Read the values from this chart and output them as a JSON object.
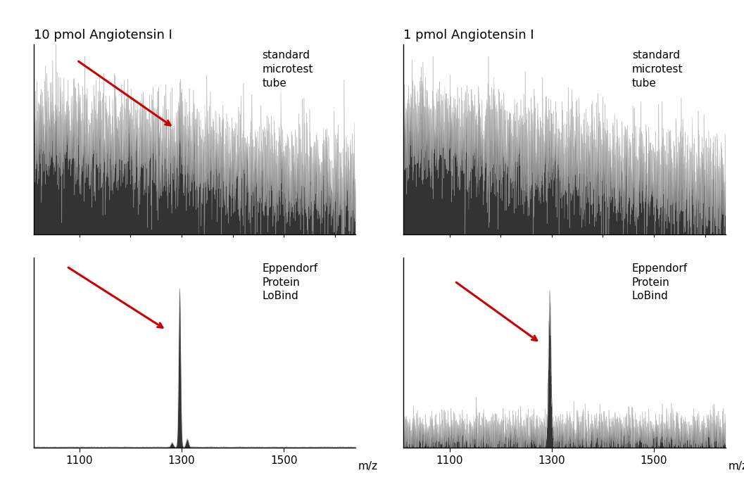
{
  "title_left": "10 pmol Angiotensin I",
  "title_right": "1 pmol Angiotensin I",
  "xlabel": "m/z",
  "xlim": [
    1010,
    1640
  ],
  "xticks": [
    1100,
    1300,
    1500
  ],
  "background_color": "#ffffff",
  "label_top_left": "standard\nmicrotest\ntube",
  "label_bottom_left": "Eppendorf\nProtein\nLoBind",
  "label_top_right": "standard\nmicrotest\ntube",
  "label_bottom_right": "Eppendorf\nProtein\nLoBind",
  "peak_mz": 1296,
  "fill_color": "#333333",
  "line_color": "#aaaaaa",
  "arrow_color": "#cc0000",
  "seed": 42,
  "n_points": 3000
}
